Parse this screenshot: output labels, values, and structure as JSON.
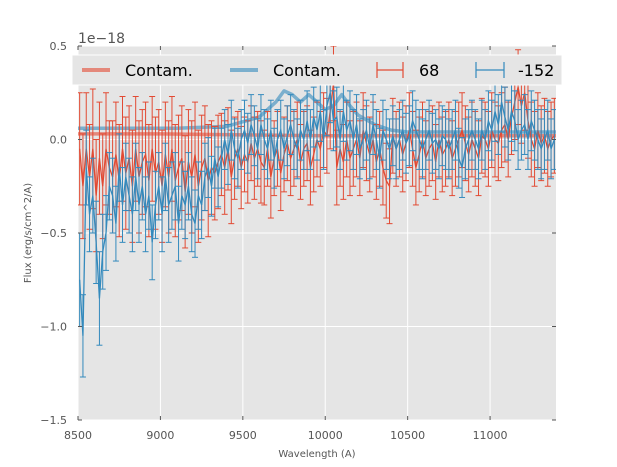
{
  "chart_data": {
    "type": "line",
    "title": "",
    "xlabel": "Wavelength (A)",
    "ylabel": "Flux (erg/s/cm^2/A)",
    "y_offset_label": "1e−18",
    "xlim": [
      8500,
      11400
    ],
    "ylim": [
      -1.5,
      0.5
    ],
    "y_scale_factor": 1e-18,
    "xticks": [
      8500,
      9000,
      9500,
      10000,
      10500,
      11000
    ],
    "xtick_labels": [
      "8500",
      "9000",
      "9500",
      "10000",
      "10500",
      "11000"
    ],
    "yticks": [
      -1.5,
      -1.0,
      -0.5,
      0.0,
      0.5
    ],
    "ytick_labels": [
      "−1.5",
      "−1.0",
      "−0.5",
      "0.0",
      "0.5"
    ],
    "grid": true,
    "legend": {
      "placement": "top",
      "columns": 4,
      "entries": [
        {
          "label": "Contam.",
          "type": "line",
          "color": "#e24a33"
        },
        {
          "label": "Contam.",
          "type": "line",
          "color": "#348abd"
        },
        {
          "label": "68",
          "type": "errorbar",
          "color": "#e24a33"
        },
        {
          "label": "-152",
          "type": "errorbar",
          "color": "#348abd"
        }
      ]
    },
    "colors": {
      "red": "#e24a33",
      "blue": "#348abd",
      "background": "#e5e5e5",
      "grid": "#ffffff"
    },
    "series": [
      {
        "name": "Contam.",
        "kind": "contamination",
        "color": "#e24a33",
        "x": [
          8500,
          9000,
          9500,
          10000,
          10500,
          11000,
          11400
        ],
        "y": [
          0.03,
          0.03,
          0.025,
          0.02,
          0.02,
          0.02,
          0.02
        ]
      },
      {
        "name": "Contam.",
        "kind": "contamination",
        "color": "#348abd",
        "x": [
          8500,
          8800,
          9100,
          9400,
          9600,
          9700,
          9750,
          9800,
          9850,
          9900,
          9950,
          10000,
          10050,
          10100,
          10150,
          10200,
          10300,
          10400,
          10500,
          10700,
          11000,
          11400
        ],
        "y": [
          0.06,
          0.06,
          0.06,
          0.07,
          0.12,
          0.2,
          0.26,
          0.24,
          0.2,
          0.24,
          0.2,
          0.16,
          0.18,
          0.24,
          0.18,
          0.13,
          0.08,
          0.05,
          0.04,
          0.04,
          0.04,
          0.04
        ]
      },
      {
        "name": "68",
        "kind": "errorbar",
        "color": "#e24a33",
        "x": [
          8510,
          8530,
          8550,
          8570,
          8590,
          8610,
          8630,
          8650,
          8670,
          8690,
          8710,
          8730,
          8750,
          8770,
          8790,
          8810,
          8830,
          8850,
          8870,
          8890,
          8910,
          8930,
          8950,
          8970,
          8990,
          9010,
          9030,
          9050,
          9070,
          9090,
          9110,
          9130,
          9150,
          9170,
          9190,
          9210,
          9230,
          9250,
          9270,
          9290,
          9310,
          9330,
          9350,
          9370,
          9390,
          9410,
          9430,
          9450,
          9470,
          9490,
          9510,
          9530,
          9550,
          9570,
          9590,
          9610,
          9630,
          9650,
          9670,
          9690,
          9710,
          9730,
          9750,
          9770,
          9790,
          9810,
          9830,
          9850,
          9870,
          9890,
          9910,
          9930,
          9950,
          9970,
          9990,
          10010,
          10030,
          10050,
          10070,
          10090,
          10110,
          10130,
          10150,
          10170,
          10190,
          10210,
          10230,
          10250,
          10270,
          10290,
          10310,
          10330,
          10350,
          10370,
          10390,
          10410,
          10430,
          10450,
          10470,
          10490,
          10510,
          10530,
          10550,
          10570,
          10590,
          10610,
          10630,
          10650,
          10670,
          10690,
          10710,
          10730,
          10750,
          10770,
          10790,
          10810,
          10830,
          10850,
          10870,
          10890,
          10910,
          10930,
          10950,
          10970,
          10990,
          11010,
          11030,
          11050,
          11070,
          11090,
          11110,
          11130,
          11150,
          11170,
          11190,
          11210,
          11230,
          11250,
          11270,
          11290,
          11310,
          11330,
          11350,
          11370,
          11390
        ],
        "y": [
          -0.05,
          -0.25,
          -0.05,
          -0.2,
          -0.05,
          -0.3,
          -0.1,
          -0.25,
          -0.05,
          -0.15,
          -0.2,
          -0.08,
          -0.22,
          -0.05,
          -0.18,
          -0.1,
          -0.25,
          -0.05,
          -0.2,
          -0.12,
          -0.08,
          -0.22,
          -0.05,
          -0.18,
          -0.12,
          -0.25,
          -0.08,
          -0.2,
          -0.05,
          -0.22,
          -0.15,
          -0.1,
          -0.28,
          -0.12,
          -0.2,
          -0.08,
          -0.25,
          -0.15,
          -0.1,
          -0.22,
          -0.15,
          -0.18,
          -0.12,
          -0.08,
          -0.15,
          -0.05,
          -0.2,
          -0.1,
          -0.05,
          -0.15,
          -0.08,
          -0.12,
          -0.02,
          -0.1,
          -0.05,
          -0.12,
          -0.15,
          -0.05,
          -0.2,
          -0.1,
          -0.05,
          -0.18,
          -0.08,
          -0.02,
          -0.1,
          -0.05,
          0.0,
          -0.12,
          -0.05,
          -0.02,
          -0.15,
          -0.08,
          0.0,
          -0.05,
          0.05,
          0.02,
          0.15,
          0.3,
          -0.15,
          -0.05,
          -0.12,
          0.0,
          -0.1,
          -0.05,
          0.0,
          -0.1,
          0.05,
          -0.02,
          -0.08,
          0.0,
          -0.12,
          -0.05,
          -0.15,
          -0.22,
          -0.25,
          0.02,
          -0.05,
          0.0,
          -0.08,
          -0.02,
          0.05,
          -0.05,
          -0.15,
          -0.08,
          0.0,
          -0.1,
          -0.05,
          -0.02,
          -0.12,
          0.0,
          -0.08,
          -0.05,
          0.0,
          -0.1,
          -0.05,
          0.0,
          0.05,
          -0.02,
          -0.08,
          0.0,
          -0.05,
          -0.1,
          0.02,
          0.0,
          -0.05,
          0.05,
          0.0,
          -0.02,
          0.05,
          0.08,
          0.0,
          0.12,
          0.2,
          0.28,
          0.18,
          0.25,
          0.1,
          0.0,
          -0.05,
          0.05,
          -0.02,
          0.02,
          -0.05,
          0.0,
          0.02
        ],
        "yerr": [
          0.3,
          0.28,
          0.3,
          0.28,
          0.32,
          0.3,
          0.3,
          0.28,
          0.3,
          0.25,
          0.3,
          0.28,
          0.3,
          0.28,
          0.3,
          0.28,
          0.3,
          0.28,
          0.3,
          0.28,
          0.28,
          0.3,
          0.28,
          0.3,
          0.28,
          0.3,
          0.28,
          0.3,
          0.28,
          0.3,
          0.28,
          0.28,
          0.3,
          0.28,
          0.3,
          0.28,
          0.3,
          0.28,
          0.28,
          0.3,
          0.25,
          0.25,
          0.25,
          0.22,
          0.25,
          0.22,
          0.25,
          0.22,
          0.2,
          0.22,
          0.2,
          0.22,
          0.2,
          0.22,
          0.2,
          0.22,
          0.2,
          0.2,
          0.22,
          0.2,
          0.2,
          0.2,
          0.2,
          0.2,
          0.2,
          0.2,
          0.2,
          0.2,
          0.2,
          0.2,
          0.2,
          0.2,
          0.2,
          0.2,
          0.2,
          0.2,
          0.2,
          0.2,
          0.2,
          0.2,
          0.2,
          0.2,
          0.2,
          0.2,
          0.2,
          0.2,
          0.2,
          0.2,
          0.2,
          0.2,
          0.2,
          0.2,
          0.2,
          0.2,
          0.2,
          0.2,
          0.2,
          0.2,
          0.2,
          0.2,
          0.2,
          0.2,
          0.2,
          0.2,
          0.2,
          0.2,
          0.2,
          0.2,
          0.2,
          0.2,
          0.2,
          0.2,
          0.2,
          0.2,
          0.2,
          0.2,
          0.2,
          0.2,
          0.2,
          0.2,
          0.2,
          0.2,
          0.2,
          0.2,
          0.2,
          0.2,
          0.2,
          0.2,
          0.2,
          0.2,
          0.2,
          0.2,
          0.2,
          0.2,
          0.2,
          0.2,
          0.2,
          0.2,
          0.2,
          0.2,
          0.2,
          0.2,
          0.2,
          0.2,
          0.2
        ]
      },
      {
        "name": "-152",
        "kind": "errorbar",
        "color": "#348abd",
        "x": [
          8510,
          8530,
          8550,
          8570,
          8590,
          8610,
          8630,
          8650,
          8670,
          8690,
          8710,
          8730,
          8750,
          8770,
          8790,
          8810,
          8830,
          8850,
          8870,
          8890,
          8910,
          8930,
          8950,
          8970,
          8990,
          9010,
          9030,
          9050,
          9070,
          9090,
          9110,
          9130,
          9150,
          9170,
          9190,
          9210,
          9230,
          9250,
          9270,
          9290,
          9310,
          9330,
          9350,
          9370,
          9390,
          9410,
          9430,
          9450,
          9470,
          9490,
          9510,
          9530,
          9550,
          9570,
          9590,
          9610,
          9630,
          9650,
          9670,
          9690,
          9710,
          9730,
          9750,
          9770,
          9790,
          9810,
          9830,
          9850,
          9870,
          9890,
          9910,
          9930,
          9950,
          9970,
          9990,
          10010,
          10030,
          10050,
          10070,
          10090,
          10110,
          10130,
          10150,
          10170,
          10190,
          10210,
          10230,
          10250,
          10270,
          10290,
          10310,
          10330,
          10350,
          10370,
          10390,
          10410,
          10430,
          10450,
          10470,
          10490,
          10510,
          10530,
          10550,
          10570,
          10590,
          10610,
          10630,
          10650,
          10670,
          10690,
          10710,
          10730,
          10750,
          10770,
          10790,
          10810,
          10830,
          10850,
          10870,
          10890,
          10910,
          10930,
          10950,
          10970,
          10990,
          11010,
          11030,
          11050,
          11070,
          11090,
          11110,
          11130,
          11150,
          11170,
          11190,
          11210,
          11230,
          11250,
          11270,
          11290,
          11310,
          11330,
          11350,
          11370,
          11390
        ],
        "y": [
          -0.75,
          -1.05,
          -0.15,
          -0.4,
          -0.3,
          -0.55,
          -0.85,
          -0.6,
          -0.5,
          -0.25,
          -0.3,
          -0.45,
          -0.15,
          -0.35,
          -0.2,
          -0.3,
          -0.4,
          -0.2,
          -0.35,
          -0.25,
          -0.4,
          -0.3,
          -0.55,
          -0.35,
          -0.25,
          -0.4,
          -0.2,
          -0.35,
          -0.3,
          -0.25,
          -0.45,
          -0.3,
          -0.35,
          -0.25,
          -0.4,
          -0.45,
          -0.3,
          -0.35,
          -0.2,
          -0.15,
          -0.25,
          -0.1,
          -0.2,
          -0.1,
          0.0,
          -0.08,
          0.05,
          -0.05,
          -0.1,
          0.0,
          0.05,
          -0.02,
          0.08,
          0.02,
          -0.05,
          0.08,
          0.0,
          -0.05,
          0.05,
          -0.1,
          0.0,
          0.05,
          -0.05,
          0.02,
          0.08,
          0.0,
          -0.05,
          0.05,
          0.0,
          0.1,
          0.0,
          0.12,
          0.05,
          0.15,
          0.0,
          0.18,
          0.25,
          0.1,
          0.12,
          0.0,
          0.15,
          0.05,
          0.1,
          0.0,
          0.08,
          -0.05,
          0.0,
          0.05,
          -0.05,
          0.08,
          0.0,
          -0.1,
          0.05,
          0.0,
          -0.05,
          0.02,
          -0.05,
          0.0,
          0.05,
          -0.02,
          0.02,
          0.1,
          0.05,
          0.0,
          -0.05,
          0.0,
          0.05,
          -0.02,
          0.0,
          -0.05,
          0.02,
          0.0,
          -0.05,
          0.0,
          0.05,
          -0.1,
          -0.15,
          -0.05,
          0.0,
          0.05,
          0.0,
          -0.05,
          0.05,
          0.0,
          0.1,
          0.05,
          0.15,
          0.08,
          0.2,
          0.12,
          0.05,
          0.15,
          0.1,
          0.0,
          0.05,
          0.08,
          0.0,
          0.1,
          0.05,
          0.0,
          -0.05,
          0.0,
          0.05,
          -0.05,
          0.0
        ],
        "yerr": [
          0.25,
          0.22,
          0.2,
          0.2,
          0.2,
          0.22,
          0.25,
          0.2,
          0.2,
          0.18,
          0.2,
          0.2,
          0.18,
          0.2,
          0.18,
          0.2,
          0.2,
          0.18,
          0.2,
          0.18,
          0.2,
          0.18,
          0.2,
          0.18,
          0.18,
          0.2,
          0.18,
          0.2,
          0.18,
          0.18,
          0.2,
          0.18,
          0.18,
          0.18,
          0.2,
          0.18,
          0.18,
          0.18,
          0.18,
          0.16,
          0.16,
          0.16,
          0.16,
          0.16,
          0.16,
          0.16,
          0.16,
          0.16,
          0.16,
          0.16,
          0.16,
          0.16,
          0.16,
          0.16,
          0.16,
          0.16,
          0.16,
          0.16,
          0.16,
          0.16,
          0.16,
          0.16,
          0.16,
          0.16,
          0.16,
          0.16,
          0.16,
          0.16,
          0.16,
          0.16,
          0.16,
          0.16,
          0.16,
          0.16,
          0.16,
          0.16,
          0.16,
          0.16,
          0.16,
          0.16,
          0.16,
          0.16,
          0.16,
          0.16,
          0.16,
          0.16,
          0.16,
          0.16,
          0.16,
          0.16,
          0.16,
          0.16,
          0.16,
          0.16,
          0.16,
          0.16,
          0.16,
          0.16,
          0.16,
          0.16,
          0.16,
          0.16,
          0.16,
          0.16,
          0.16,
          0.16,
          0.16,
          0.16,
          0.16,
          0.16,
          0.16,
          0.16,
          0.16,
          0.16,
          0.16,
          0.16,
          0.16,
          0.16,
          0.16,
          0.16,
          0.16,
          0.16,
          0.16,
          0.16,
          0.16,
          0.16,
          0.16,
          0.16,
          0.16,
          0.16,
          0.16,
          0.16,
          0.16,
          0.16,
          0.16,
          0.16,
          0.16,
          0.16,
          0.16,
          0.16,
          0.16,
          0.16,
          0.16,
          0.16,
          0.16
        ]
      }
    ]
  }
}
